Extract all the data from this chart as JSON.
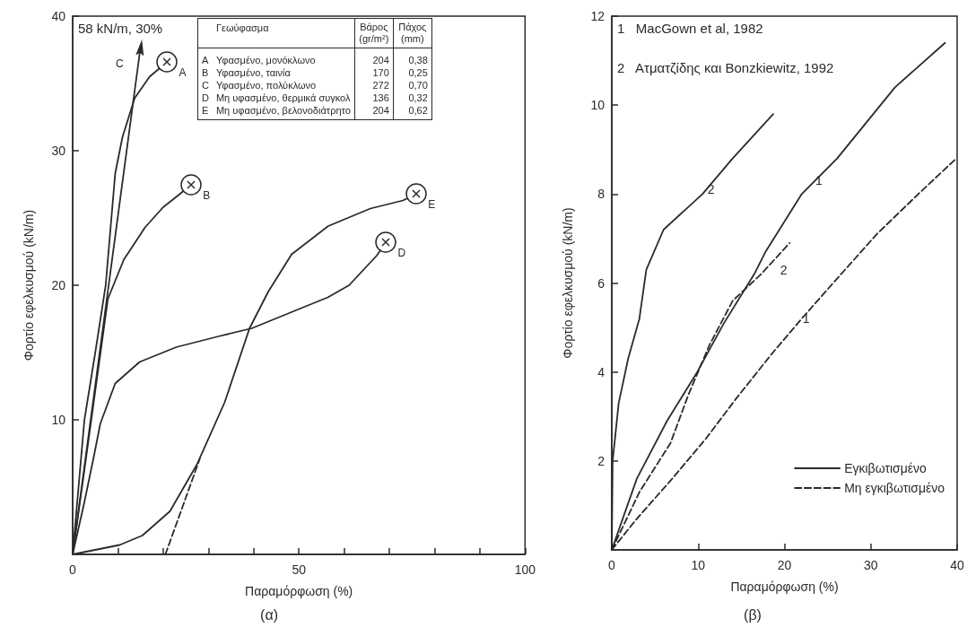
{
  "chart_data": [
    {
      "type": "line",
      "title": "(α)",
      "xlabel": "Παραμόρφωση (%)",
      "ylabel": "Φορτίο εφελκυσμού (kN/m)",
      "xlim": [
        0,
        100
      ],
      "ylim": [
        0,
        40
      ],
      "xticks": [
        0,
        {
          "value": 10,
          "label": null
        },
        {
          "value": 20,
          "label": null
        },
        {
          "value": 30,
          "label": null
        },
        {
          "value": 40,
          "label": null
        },
        50,
        {
          "value": 60,
          "label": null
        },
        {
          "value": 70,
          "label": null
        },
        {
          "value": 80,
          "label": null
        },
        {
          "value": 90,
          "label": null
        },
        100
      ],
      "yticks": [
        10,
        20,
        30,
        40
      ],
      "annotations": [
        "58 kN/m, 30%"
      ],
      "series": [
        {
          "name": "A",
          "color": "#2a2a2a",
          "x": [
            0,
            2.6,
            5,
            7.3,
            9.4,
            11,
            13.7,
            17,
            20.9
          ],
          "values": [
            0,
            10,
            15,
            20,
            28.3,
            31,
            33.9,
            35.5,
            36.6
          ]
        },
        {
          "name": "B",
          "color": "#2a2a2a",
          "x": [
            0,
            4,
            7.8,
            11.3,
            16,
            20,
            23.4,
            26.2
          ],
          "values": [
            0,
            9.7,
            19,
            21.9,
            24.3,
            25.8,
            26.7,
            27.5
          ]
        },
        {
          "name": "C",
          "color": "#2a2a2a",
          "x": [
            0,
            15
          ],
          "values": [
            0,
            37.7
          ]
        },
        {
          "name": "D",
          "color": "#2a2a2a",
          "x": [
            0,
            2.6,
            4.7,
            6.1,
            9.4,
            14.8,
            22.9,
            32.2,
            39.6,
            49.8,
            56.4,
            61.1,
            67.2,
            69.3
          ],
          "values": [
            0,
            3.9,
            7.3,
            9.7,
            12.7,
            14.3,
            15.4,
            16.2,
            16.8,
            18.2,
            19.1,
            20,
            22.2,
            23.2
          ]
        },
        {
          "name": "E",
          "color": "#2a2a2a",
          "x": [
            0,
            10.4,
            15.4,
            21.5,
            27.5,
            33.6,
            39.1,
            43.2,
            48.4,
            56.5,
            65.8,
            73,
            76
          ],
          "values": [
            0,
            0.7,
            1.4,
            3.2,
            6.7,
            11.3,
            16.8,
            19.5,
            22.3,
            24.4,
            25.7,
            26.3,
            26.8
          ]
        },
        {
          "color": "#2a2a2a",
          "line_style": "dashed",
          "x": [
            20.5,
            28.1
          ],
          "values": [
            0,
            7.1
          ]
        }
      ]
    },
    {
      "type": "other",
      "annotations": [
        "Γεωύφασμα",
        "Βάρος (gr/m²)",
        "Πάχος (mm)",
        "A",
        "Υφασμένο, μονόκλωνο",
        "204",
        "0,38",
        "B",
        "Υφασμένο, ταινία",
        "170",
        "0,25",
        "C",
        "Υφασμένο, πολύκλωνο",
        "272",
        "0,70",
        "D",
        "Μη υφασμένο, θερμικά συγκολ",
        "136",
        "0,32",
        "E",
        "Μη υφασμένο, βελονοδιάτρητο",
        "204",
        "0,62"
      ]
    },
    {
      "type": "line",
      "title": "(β)",
      "xlabel": "Παραμόρφωση (%)",
      "ylabel": "Φορτίο εφελκυσμού (kN/m)",
      "xlim": [
        0,
        40
      ],
      "ylim": [
        0,
        12
      ],
      "xticks": [
        0,
        10,
        20,
        30,
        40
      ],
      "yticks": [
        2,
        4,
        6,
        8,
        10,
        12
      ],
      "legend": "bottom right",
      "annotations": [
        "1   MacGown et al, 1982",
        "2   Ατματζίδης και Bonzkiewitz, 1992",
        {
          "text": "1",
          "x": 24,
          "y": 8.3
        },
        {
          "text": "2",
          "x": 11.5,
          "y": 8.1
        },
        {
          "text": "2",
          "x": 19.9,
          "y": 6.3
        },
        {
          "text": "1",
          "x": 22.5,
          "y": 5.2
        }
      ],
      "series": [
        {
          "name": "Εγκιβωτισμένο",
          "color": "#2a2a2a",
          "line_style": "solid",
          "x": [
            0,
            2.9,
            6.4,
            9.9,
            13,
            16.5,
            17.8,
            22,
            26.1,
            32.8,
            38.6
          ],
          "values": [
            0,
            1.6,
            2.9,
            4,
            5.1,
            6.2,
            6.7,
            8,
            8.8,
            10.4,
            11.4
          ]
        },
        {
          "color": "#2a2a2a",
          "line_style": "solid",
          "x": [
            0,
            0.1,
            0.8,
            1.9,
            3.2,
            4,
            6,
            10.5,
            14,
            18.7
          ],
          "values": [
            0,
            2,
            3.3,
            4.3,
            5.2,
            6.3,
            7.2,
            8,
            8.8,
            9.8
          ]
        },
        {
          "name": "Μη εγκιβωτισμένο",
          "color": "#2a2a2a",
          "line_style": "dashed",
          "x": [
            0,
            3.2,
            6.8,
            8.9,
            11.3,
            14,
            17.3,
            20.6
          ],
          "values": [
            0,
            1.3,
            2.4,
            3.5,
            4.6,
            5.6,
            6.2,
            6.9
          ]
        },
        {
          "color": "#2a2a2a",
          "line_style": "dashed",
          "x": [
            0,
            2.9,
            7,
            10.9,
            14.4,
            18.5,
            22,
            26.1,
            30.7,
            35.5,
            39.9
          ],
          "values": [
            0,
            0.7,
            1.6,
            2.5,
            3.4,
            4.4,
            5.2,
            6.1,
            7.1,
            8,
            8.8
          ]
        }
      ]
    }
  ]
}
